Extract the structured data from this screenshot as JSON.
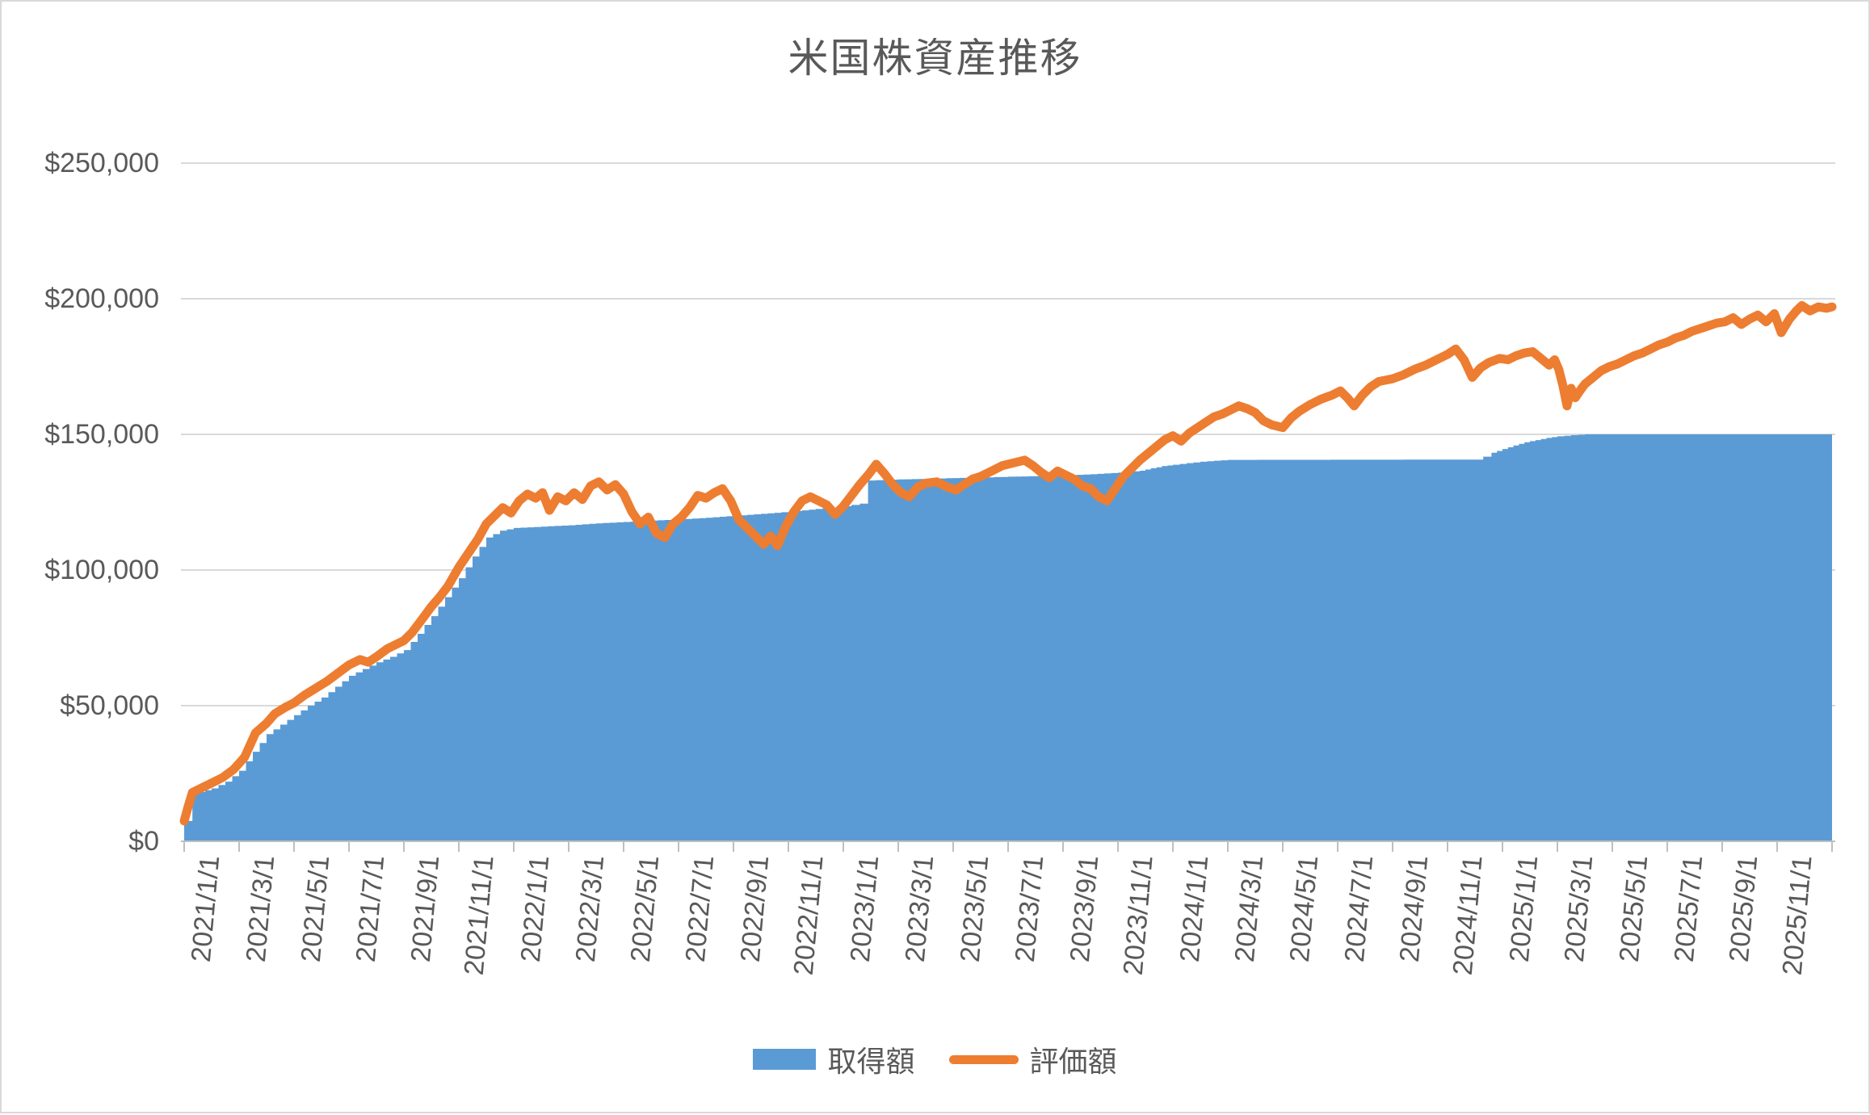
{
  "title": "米国株資産推移",
  "colors": {
    "acquisition": "#5B9BD5",
    "valuation": "#ED7D31",
    "gridline": "#D9D9D9",
    "axis_line": "#BFBFBF",
    "text": "#595959"
  },
  "legend": {
    "acquisition_label": "取得額",
    "valuation_label": "評価額"
  },
  "chart_data": {
    "type": "area",
    "title": "米国株資産推移",
    "xlabel": "",
    "ylabel": "",
    "ylim": [
      0,
      250000
    ],
    "grid": "horizontal",
    "legend_position": "bottom",
    "x_unit": "months since 2021/1/1",
    "x_range_months": 60,
    "y_ticks": [
      {
        "label": "$0",
        "value": 0
      },
      {
        "label": "$50,000",
        "value": 50000
      },
      {
        "label": "$100,000",
        "value": 100000
      },
      {
        "label": "$150,000",
        "value": 150000
      },
      {
        "label": "$200,000",
        "value": 200000
      },
      {
        "label": "$250,000",
        "value": 250000
      }
    ],
    "x_ticks": [
      {
        "label": "2021/1/1",
        "month": 0
      },
      {
        "label": "2021/3/1",
        "month": 2
      },
      {
        "label": "2021/5/1",
        "month": 4
      },
      {
        "label": "2021/7/1",
        "month": 6
      },
      {
        "label": "2021/9/1",
        "month": 8
      },
      {
        "label": "2021/11/1",
        "month": 10
      },
      {
        "label": "2022/1/1",
        "month": 12
      },
      {
        "label": "2022/3/1",
        "month": 14
      },
      {
        "label": "2022/5/1",
        "month": 16
      },
      {
        "label": "2022/7/1",
        "month": 18
      },
      {
        "label": "2022/9/1",
        "month": 20
      },
      {
        "label": "2022/11/1",
        "month": 22
      },
      {
        "label": "2023/1/1",
        "month": 24
      },
      {
        "label": "2023/3/1",
        "month": 26
      },
      {
        "label": "2023/5/1",
        "month": 28
      },
      {
        "label": "2023/7/1",
        "month": 30
      },
      {
        "label": "2023/9/1",
        "month": 32
      },
      {
        "label": "2023/11/1",
        "month": 34
      },
      {
        "label": "2024/1/1",
        "month": 36
      },
      {
        "label": "2024/3/1",
        "month": 38
      },
      {
        "label": "2024/5/1",
        "month": 40
      },
      {
        "label": "2024/7/1",
        "month": 42
      },
      {
        "label": "2024/9/1",
        "month": 44
      },
      {
        "label": "2024/11/1",
        "month": 46
      },
      {
        "label": "2025/1/1",
        "month": 48
      },
      {
        "label": "2025/3/1",
        "month": 50
      },
      {
        "label": "2025/5/1",
        "month": 52
      },
      {
        "label": "2025/7/1",
        "month": 54
      },
      {
        "label": "2025/9/1",
        "month": 56
      },
      {
        "label": "2025/11/1",
        "month": 58
      }
    ],
    "minor_tick_months": 2,
    "series": [
      {
        "name": "取得額",
        "type": "area-step",
        "color": "#5B9BD5",
        "points": [
          [
            0,
            7500
          ],
          [
            0.3,
            17500
          ],
          [
            1,
            19500
          ],
          [
            1.5,
            22000
          ],
          [
            2,
            26000
          ],
          [
            2.5,
            33000
          ],
          [
            3,
            39500
          ],
          [
            3.5,
            43000
          ],
          [
            4,
            46500
          ],
          [
            4.5,
            50000
          ],
          [
            5,
            53000
          ],
          [
            5.5,
            57000
          ],
          [
            6,
            61000
          ],
          [
            6.5,
            63500
          ],
          [
            7,
            66000
          ],
          [
            7.5,
            68000
          ],
          [
            8,
            70500
          ],
          [
            8.5,
            76500
          ],
          [
            9,
            83000
          ],
          [
            9.5,
            90000
          ],
          [
            10,
            97000
          ],
          [
            10.5,
            105000
          ],
          [
            11,
            112000
          ],
          [
            11.5,
            114500
          ],
          [
            12,
            115500
          ],
          [
            13,
            116000
          ],
          [
            14,
            116500
          ],
          [
            15,
            117200
          ],
          [
            16,
            117700
          ],
          [
            17,
            118200
          ],
          [
            18,
            118700
          ],
          [
            19,
            119300
          ],
          [
            20,
            120000
          ],
          [
            21,
            120700
          ],
          [
            22,
            121500
          ],
          [
            23,
            122500
          ],
          [
            24,
            123500
          ],
          [
            24.6,
            124500
          ],
          [
            24.9,
            133000
          ],
          [
            26,
            133400
          ],
          [
            27,
            133600
          ],
          [
            28,
            133900
          ],
          [
            29,
            134100
          ],
          [
            30,
            134400
          ],
          [
            31,
            134600
          ],
          [
            32,
            134900
          ],
          [
            33,
            135300
          ],
          [
            34,
            135900
          ],
          [
            34.8,
            136600
          ],
          [
            35.2,
            137500
          ],
          [
            35.6,
            138300
          ],
          [
            36,
            138800
          ],
          [
            36.5,
            139400
          ],
          [
            37,
            139900
          ],
          [
            37.5,
            140300
          ],
          [
            38,
            140600
          ],
          [
            47.1,
            140700
          ],
          [
            47.3,
            141800
          ],
          [
            47.6,
            143200
          ],
          [
            48,
            144600
          ],
          [
            48.4,
            145900
          ],
          [
            48.8,
            147100
          ],
          [
            49.2,
            147900
          ],
          [
            49.6,
            148700
          ],
          [
            50,
            149300
          ],
          [
            50.5,
            149700
          ],
          [
            51,
            150000
          ],
          [
            60,
            150000
          ]
        ]
      },
      {
        "name": "評価額",
        "type": "line",
        "color": "#ED7D31",
        "stroke_width": 11,
        "points": [
          [
            0,
            7500
          ],
          [
            0.15,
            13000
          ],
          [
            0.3,
            18000
          ],
          [
            0.7,
            20000
          ],
          [
            1,
            21500
          ],
          [
            1.4,
            23500
          ],
          [
            1.8,
            26500
          ],
          [
            2.2,
            31000
          ],
          [
            2.6,
            40000
          ],
          [
            3,
            43500
          ],
          [
            3.3,
            47000
          ],
          [
            3.7,
            49500
          ],
          [
            4,
            51000
          ],
          [
            4.4,
            54000
          ],
          [
            4.8,
            56500
          ],
          [
            5.2,
            59000
          ],
          [
            5.6,
            62000
          ],
          [
            6,
            65000
          ],
          [
            6.4,
            67000
          ],
          [
            6.7,
            66000
          ],
          [
            7,
            68000
          ],
          [
            7.4,
            71000
          ],
          [
            7.7,
            72500
          ],
          [
            8,
            74000
          ],
          [
            8.3,
            77000
          ],
          [
            8.6,
            81000
          ],
          [
            9,
            86500
          ],
          [
            9.3,
            90000
          ],
          [
            9.6,
            94000
          ],
          [
            10,
            101000
          ],
          [
            10.4,
            107000
          ],
          [
            10.7,
            111500
          ],
          [
            11,
            117000
          ],
          [
            11.3,
            120000
          ],
          [
            11.6,
            123000
          ],
          [
            11.9,
            121000
          ],
          [
            12.2,
            125500
          ],
          [
            12.5,
            128000
          ],
          [
            12.8,
            126500
          ],
          [
            13.05,
            128500
          ],
          [
            13.3,
            122000
          ],
          [
            13.6,
            127000
          ],
          [
            13.9,
            125500
          ],
          [
            14.2,
            128500
          ],
          [
            14.5,
            126000
          ],
          [
            14.8,
            131000
          ],
          [
            15.1,
            132500
          ],
          [
            15.4,
            129500
          ],
          [
            15.7,
            131500
          ],
          [
            16,
            128000
          ],
          [
            16.3,
            121500
          ],
          [
            16.6,
            117000
          ],
          [
            16.9,
            119500
          ],
          [
            17.2,
            113500
          ],
          [
            17.5,
            112000
          ],
          [
            17.8,
            117000
          ],
          [
            18.1,
            119500
          ],
          [
            18.4,
            123000
          ],
          [
            18.7,
            127500
          ],
          [
            19,
            126500
          ],
          [
            19.3,
            128500
          ],
          [
            19.6,
            130000
          ],
          [
            19.9,
            125500
          ],
          [
            20.2,
            118500
          ],
          [
            20.5,
            115500
          ],
          [
            20.8,
            112500
          ],
          [
            21.1,
            109500
          ],
          [
            21.35,
            112500
          ],
          [
            21.6,
            109000
          ],
          [
            21.9,
            116000
          ],
          [
            22.2,
            121500
          ],
          [
            22.5,
            125500
          ],
          [
            22.8,
            127000
          ],
          [
            23.1,
            125500
          ],
          [
            23.4,
            124000
          ],
          [
            23.7,
            120500
          ],
          [
            24,
            123500
          ],
          [
            24.3,
            127500
          ],
          [
            24.6,
            131500
          ],
          [
            24.9,
            135000
          ],
          [
            25.2,
            139000
          ],
          [
            25.5,
            135500
          ],
          [
            25.8,
            131500
          ],
          [
            26.1,
            128500
          ],
          [
            26.4,
            127000
          ],
          [
            26.7,
            130500
          ],
          [
            27,
            132000
          ],
          [
            27.4,
            132500
          ],
          [
            27.8,
            130500
          ],
          [
            28.1,
            129500
          ],
          [
            28.4,
            131500
          ],
          [
            28.7,
            133500
          ],
          [
            29,
            134500
          ],
          [
            29.4,
            136500
          ],
          [
            29.8,
            138500
          ],
          [
            30.2,
            139500
          ],
          [
            30.6,
            140500
          ],
          [
            30.9,
            138500
          ],
          [
            31.2,
            136000
          ],
          [
            31.5,
            134000
          ],
          [
            31.8,
            136500
          ],
          [
            32.1,
            135000
          ],
          [
            32.4,
            133500
          ],
          [
            32.7,
            131000
          ],
          [
            33,
            130000
          ],
          [
            33.3,
            127000
          ],
          [
            33.6,
            125500
          ],
          [
            33.9,
            130000
          ],
          [
            34.2,
            134500
          ],
          [
            34.5,
            137500
          ],
          [
            34.8,
            140500
          ],
          [
            35.1,
            143000
          ],
          [
            35.4,
            145500
          ],
          [
            35.7,
            148000
          ],
          [
            36,
            149500
          ],
          [
            36.3,
            147500
          ],
          [
            36.6,
            150500
          ],
          [
            36.9,
            152500
          ],
          [
            37.2,
            154500
          ],
          [
            37.5,
            156500
          ],
          [
            37.8,
            157500
          ],
          [
            38.1,
            159000
          ],
          [
            38.4,
            160500
          ],
          [
            38.7,
            159500
          ],
          [
            39,
            158000
          ],
          [
            39.3,
            155000
          ],
          [
            39.6,
            153500
          ],
          [
            40,
            152500
          ],
          [
            40.3,
            156000
          ],
          [
            40.6,
            158500
          ],
          [
            41,
            161000
          ],
          [
            41.4,
            163000
          ],
          [
            41.8,
            164500
          ],
          [
            42.1,
            166000
          ],
          [
            42.35,
            163500
          ],
          [
            42.6,
            160500
          ],
          [
            42.9,
            164500
          ],
          [
            43.2,
            167500
          ],
          [
            43.5,
            169500
          ],
          [
            44,
            170500
          ],
          [
            44.4,
            172000
          ],
          [
            44.8,
            174000
          ],
          [
            45.2,
            175500
          ],
          [
            45.6,
            177500
          ],
          [
            46,
            179500
          ],
          [
            46.3,
            181500
          ],
          [
            46.6,
            177500
          ],
          [
            46.9,
            171000
          ],
          [
            47.2,
            174500
          ],
          [
            47.5,
            176500
          ],
          [
            47.9,
            178000
          ],
          [
            48.2,
            177500
          ],
          [
            48.5,
            179000
          ],
          [
            48.8,
            180000
          ],
          [
            49.1,
            180500
          ],
          [
            49.4,
            178000
          ],
          [
            49.7,
            175500
          ],
          [
            49.9,
            177500
          ],
          [
            50.05,
            174000
          ],
          [
            50.2,
            168000
          ],
          [
            50.35,
            160500
          ],
          [
            50.5,
            167000
          ],
          [
            50.65,
            163500
          ],
          [
            50.85,
            166500
          ],
          [
            51,
            168500
          ],
          [
            51.3,
            171000
          ],
          [
            51.6,
            173500
          ],
          [
            51.9,
            175000
          ],
          [
            52.2,
            176000
          ],
          [
            52.5,
            177500
          ],
          [
            52.8,
            179000
          ],
          [
            53.1,
            180000
          ],
          [
            53.4,
            181500
          ],
          [
            53.7,
            183000
          ],
          [
            54,
            184000
          ],
          [
            54.3,
            185500
          ],
          [
            54.6,
            186500
          ],
          [
            54.9,
            188000
          ],
          [
            55.2,
            189000
          ],
          [
            55.5,
            190000
          ],
          [
            55.8,
            191000
          ],
          [
            56.1,
            191500
          ],
          [
            56.4,
            193000
          ],
          [
            56.7,
            190500
          ],
          [
            57,
            192500
          ],
          [
            57.3,
            194000
          ],
          [
            57.6,
            191500
          ],
          [
            57.9,
            194500
          ],
          [
            58.15,
            187500
          ],
          [
            58.45,
            192500
          ],
          [
            58.7,
            195500
          ],
          [
            58.9,
            197500
          ],
          [
            59.2,
            195500
          ],
          [
            59.5,
            197000
          ],
          [
            59.8,
            196500
          ],
          [
            60,
            197000
          ]
        ]
      }
    ]
  }
}
